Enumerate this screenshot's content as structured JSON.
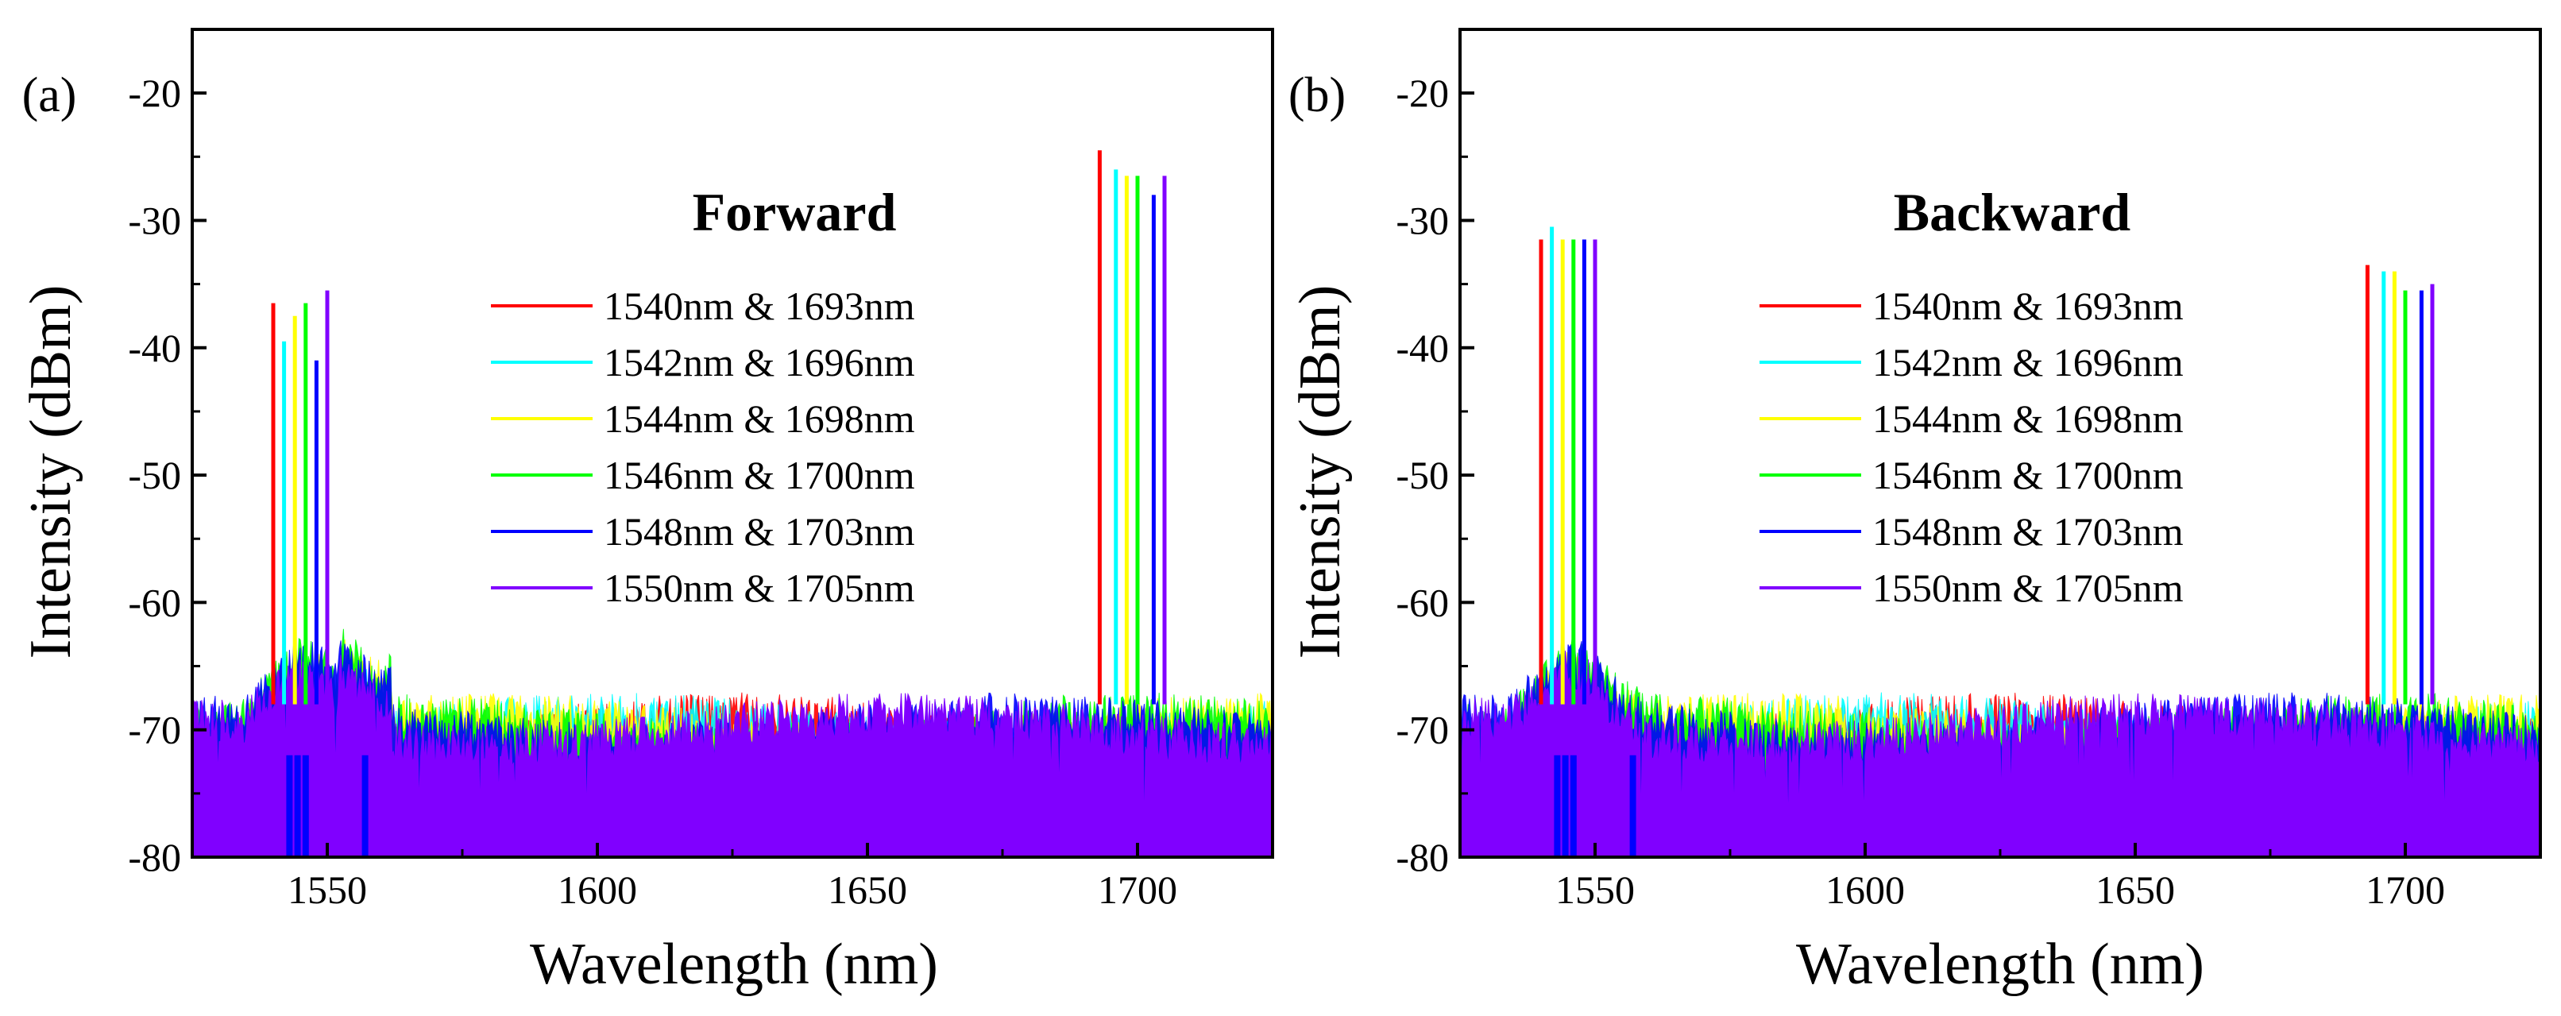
{
  "figure": {
    "panel_labels": [
      "(a)",
      "(b)"
    ]
  },
  "chart_data": [
    {
      "type": "line",
      "panel_label": "(a)",
      "title": "Forward",
      "xlabel": "Wavelength (nm)",
      "ylabel": "Intensity (dBm)",
      "xlim": [
        1525,
        1725
      ],
      "ylim": [
        -80,
        -15
      ],
      "xticks": [
        1550,
        1600,
        1650,
        1700
      ],
      "yticks": [
        -20,
        -30,
        -40,
        -50,
        -60,
        -70,
        -80
      ],
      "grid": false,
      "legend_position": "center",
      "noise_floor_dbm": -70,
      "series": [
        {
          "name": "1540nm & 1693nm",
          "color": "#ff0000",
          "peaks": [
            {
              "x": 1540,
              "y": -36.5
            },
            {
              "x": 1693,
              "y": -24.5
            }
          ]
        },
        {
          "name": "1542nm & 1696nm",
          "color": "#00ffff",
          "peaks": [
            {
              "x": 1542,
              "y": -39.5
            },
            {
              "x": 1696,
              "y": -26
            }
          ]
        },
        {
          "name": "1544nm & 1698nm",
          "color": "#ffff00",
          "peaks": [
            {
              "x": 1544,
              "y": -37.5
            },
            {
              "x": 1698,
              "y": -26.5
            }
          ]
        },
        {
          "name": "1546nm & 1700nm",
          "color": "#00ff00",
          "peaks": [
            {
              "x": 1546,
              "y": -36.5
            },
            {
              "x": 1700,
              "y": -26.5
            }
          ]
        },
        {
          "name": "1548nm & 1703nm",
          "color": "#0000ff",
          "peaks": [
            {
              "x": 1548,
              "y": -41
            },
            {
              "x": 1703,
              "y": -28
            }
          ]
        },
        {
          "name": "1550nm & 1705nm",
          "color": "#8000ff",
          "peaks": [
            {
              "x": 1550,
              "y": -35.5
            },
            {
              "x": 1705,
              "y": -26.5
            }
          ]
        }
      ]
    },
    {
      "type": "line",
      "panel_label": "(b)",
      "title": "Backward",
      "xlabel": "Wavelength (nm)",
      "ylabel": "Intensity (dBm)",
      "xlim": [
        1525,
        1725
      ],
      "ylim": [
        -80,
        -15
      ],
      "xticks": [
        1550,
        1600,
        1650,
        1700
      ],
      "yticks": [
        -20,
        -30,
        -40,
        -50,
        -60,
        -70,
        -80
      ],
      "grid": false,
      "legend_position": "center",
      "noise_floor_dbm": -70,
      "series": [
        {
          "name": "1540nm & 1693nm",
          "color": "#ff0000",
          "peaks": [
            {
              "x": 1540,
              "y": -31.5
            },
            {
              "x": 1693,
              "y": -33.5
            }
          ]
        },
        {
          "name": "1542nm & 1696nm",
          "color": "#00ffff",
          "peaks": [
            {
              "x": 1542,
              "y": -30.5
            },
            {
              "x": 1696,
              "y": -34
            }
          ]
        },
        {
          "name": "1544nm & 1698nm",
          "color": "#ffff00",
          "peaks": [
            {
              "x": 1544,
              "y": -31.5
            },
            {
              "x": 1698,
              "y": -34
            }
          ]
        },
        {
          "name": "1546nm & 1700nm",
          "color": "#00ff00",
          "peaks": [
            {
              "x": 1546,
              "y": -31.5
            },
            {
              "x": 1700,
              "y": -35.5
            }
          ]
        },
        {
          "name": "1548nm & 1703nm",
          "color": "#0000ff",
          "peaks": [
            {
              "x": 1548,
              "y": -31.5
            },
            {
              "x": 1703,
              "y": -35.5
            }
          ]
        },
        {
          "name": "1550nm & 1705nm",
          "color": "#8000ff",
          "peaks": [
            {
              "x": 1550,
              "y": -31.5
            },
            {
              "x": 1705,
              "y": -35
            }
          ]
        }
      ]
    }
  ]
}
